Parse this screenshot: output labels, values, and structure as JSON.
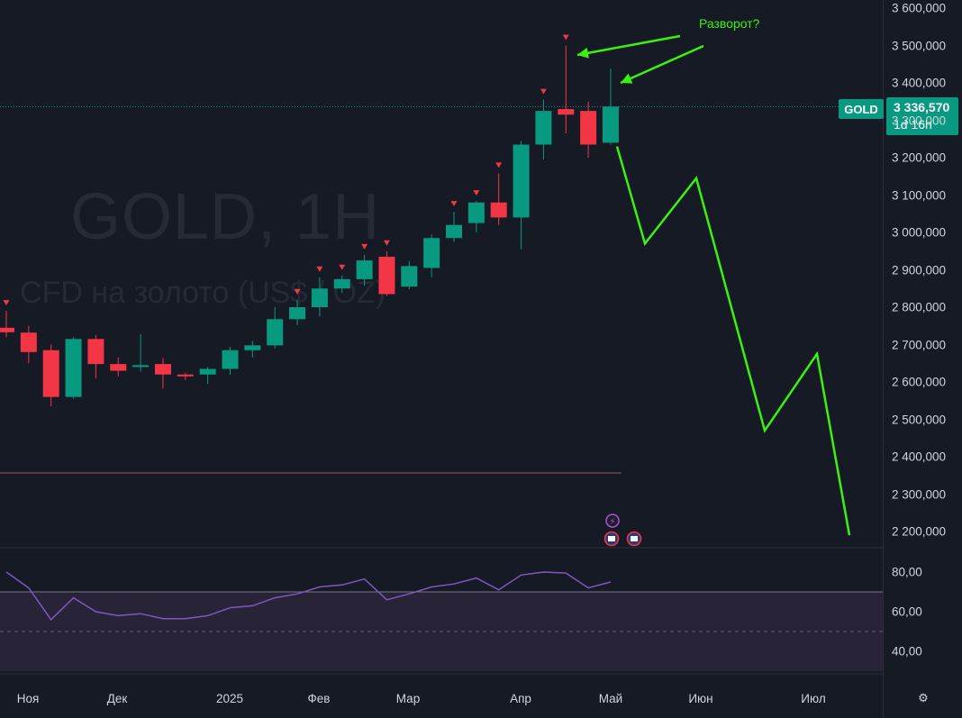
{
  "chart": {
    "symbol": "GOLD",
    "watermark_symbol": "GOLD, 1H",
    "watermark_description": "CFD на золото (US$ / OZ)",
    "last_price": "3 336,570",
    "countdown": "1d 16h",
    "annotation": "Разворот?",
    "colors": {
      "up": "#089981",
      "down": "#f23645",
      "arrow": "#39f20f",
      "rsi": "#7e57c2"
    }
  },
  "chart_data": [
    {
      "type": "candlestick",
      "title": "GOLD, 1H",
      "ylim": [
        2150000,
        3620000
      ],
      "y_ticks": [
        "3 600,000",
        "3 500,000",
        "3 400,000",
        "3 300,000",
        "3 200,000",
        "3 100,000",
        "3 000,000",
        "2 900,000",
        "2 800,000",
        "2 700,000",
        "2 600,000",
        "2 500,000",
        "2 400,000",
        "2 300,000",
        "2 200,000"
      ],
      "x_ticks": [
        "Ноя",
        "Дек",
        "2025",
        "Фев",
        "Мар",
        "Апр",
        "Май",
        "Июн",
        "Июл"
      ],
      "candles": [
        {
          "o": 2745000,
          "h": 2790000,
          "l": 2720000,
          "c": 2733000
        },
        {
          "o": 2732000,
          "h": 2750000,
          "l": 2650000,
          "c": 2680000
        },
        {
          "o": 2685000,
          "h": 2700000,
          "l": 2535000,
          "c": 2560000
        },
        {
          "o": 2560000,
          "h": 2720000,
          "l": 2555000,
          "c": 2715000
        },
        {
          "o": 2715000,
          "h": 2725000,
          "l": 2610000,
          "c": 2648000
        },
        {
          "o": 2648000,
          "h": 2665000,
          "l": 2615000,
          "c": 2630000
        },
        {
          "o": 2640000,
          "h": 2728000,
          "l": 2628000,
          "c": 2645000
        },
        {
          "o": 2648000,
          "h": 2664000,
          "l": 2582000,
          "c": 2620000
        },
        {
          "o": 2620000,
          "h": 2625000,
          "l": 2605000,
          "c": 2615000
        },
        {
          "o": 2620000,
          "h": 2640000,
          "l": 2595000,
          "c": 2635000
        },
        {
          "o": 2635000,
          "h": 2694000,
          "l": 2620000,
          "c": 2685000
        },
        {
          "o": 2685000,
          "h": 2710000,
          "l": 2665000,
          "c": 2698000
        },
        {
          "o": 2698000,
          "h": 2800000,
          "l": 2690000,
          "c": 2768000
        },
        {
          "o": 2768000,
          "h": 2820000,
          "l": 2752000,
          "c": 2800000
        },
        {
          "o": 2800000,
          "h": 2880000,
          "l": 2775000,
          "c": 2850000
        },
        {
          "o": 2850000,
          "h": 2885000,
          "l": 2838000,
          "c": 2875000
        },
        {
          "o": 2875000,
          "h": 2940000,
          "l": 2858000,
          "c": 2925000
        },
        {
          "o": 2935000,
          "h": 2950000,
          "l": 2830000,
          "c": 2835000
        },
        {
          "o": 2855000,
          "h": 2924000,
          "l": 2848000,
          "c": 2910000
        },
        {
          "o": 2905000,
          "h": 2995000,
          "l": 2880000,
          "c": 2985000
        },
        {
          "o": 2985000,
          "h": 3055000,
          "l": 2975000,
          "c": 3020000
        },
        {
          "o": 3025000,
          "h": 3084000,
          "l": 3000000,
          "c": 3080000
        },
        {
          "o": 3080000,
          "h": 3158000,
          "l": 3020000,
          "c": 3040000
        },
        {
          "o": 3040000,
          "h": 3245000,
          "l": 2955000,
          "c": 3235000
        },
        {
          "o": 3235000,
          "h": 3355000,
          "l": 3195000,
          "c": 3325000
        },
        {
          "o": 3330000,
          "h": 3500000,
          "l": 3265000,
          "c": 3315000
        },
        {
          "o": 3325000,
          "h": 3350000,
          "l": 3200000,
          "c": 3235000
        },
        {
          "o": 3240000,
          "h": 3438000,
          "l": 3235000,
          "c": 3336570
        }
      ],
      "projection": [
        3230000,
        2970000,
        3145000,
        2470000,
        2675000,
        2190000
      ]
    },
    {
      "type": "line",
      "title": "RSI",
      "ylim": [
        30,
        88
      ],
      "y_ticks": [
        "80,00",
        "60,00",
        "40,00"
      ],
      "bands": [
        70,
        50
      ],
      "values": [
        80,
        72,
        56,
        67,
        60,
        58,
        59,
        56.5,
        56.5,
        58,
        62,
        63,
        67,
        69,
        72.5,
        73.5,
        76.5,
        66,
        69,
        72.5,
        74,
        77,
        71,
        78.5,
        80,
        79.5,
        72,
        75
      ]
    }
  ]
}
